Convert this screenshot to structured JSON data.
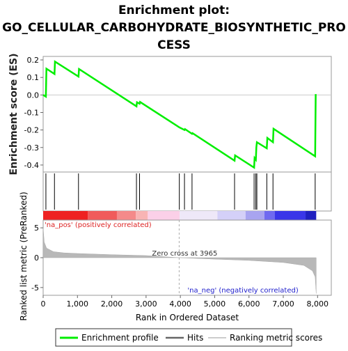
{
  "chart_data": {
    "type": "line",
    "title_lines": [
      "Enrichment plot:",
      "GO_CELLULAR_CARBOHYDRATE_BIOSYNTHETIC_PRO",
      "CESS"
    ],
    "x_label": "Rank in Ordered Dataset",
    "x_range": [
      0,
      8400
    ],
    "x_ticks": [
      0,
      1000,
      2000,
      3000,
      4000,
      5000,
      6000,
      7000,
      8000
    ],
    "x_tick_labels": [
      "0",
      "1,000",
      "2,000",
      "3,000",
      "4,000",
      "5,000",
      "6,000",
      "7,000",
      "8,000"
    ],
    "es_panel": {
      "y_label": "Enrichment score (ES)",
      "y_range": [
        -0.44,
        0.22
      ],
      "y_ticks": [
        0.2,
        0.1,
        0.0,
        -0.1,
        -0.2,
        -0.3,
        -0.4
      ],
      "y_tick_labels": [
        "0.2",
        "0.1",
        "0.0",
        "-0.1",
        "-0.2",
        "-0.3",
        "-0.4"
      ],
      "series_name": "Enrichment profile",
      "color": "#00ee00",
      "points": [
        [
          0,
          0.0
        ],
        [
          80,
          -0.01
        ],
        [
          95,
          0.15
        ],
        [
          330,
          0.12
        ],
        [
          345,
          0.19
        ],
        [
          1030,
          0.105
        ],
        [
          1045,
          0.148
        ],
        [
          2720,
          -0.065
        ],
        [
          2735,
          -0.042
        ],
        [
          2810,
          -0.05
        ],
        [
          2825,
          -0.04
        ],
        [
          3970,
          -0.185
        ],
        [
          4120,
          -0.2
        ],
        [
          4135,
          -0.195
        ],
        [
          4340,
          -0.222
        ],
        [
          4355,
          -0.218
        ],
        [
          5580,
          -0.375
        ],
        [
          5595,
          -0.345
        ],
        [
          6150,
          -0.415
        ],
        [
          6165,
          -0.36
        ],
        [
          6200,
          -0.37
        ],
        [
          6215,
          -0.3
        ],
        [
          6230,
          -0.27
        ],
        [
          6520,
          -0.305
        ],
        [
          6535,
          -0.245
        ],
        [
          6700,
          -0.27
        ],
        [
          6715,
          -0.193
        ],
        [
          7930,
          -0.35
        ],
        [
          7945,
          0.005
        ]
      ]
    },
    "hits": {
      "legend_name": "Hits",
      "positions": [
        80,
        330,
        1030,
        2720,
        2810,
        3970,
        4120,
        4340,
        5580,
        6150,
        6200,
        6230,
        6520,
        6700,
        7930
      ]
    },
    "heat_bar": {
      "colors": [
        "#ee2222",
        "#f05b5b",
        "#f48a8a",
        "#f8b4b4",
        "#fbd0e8",
        "#eee8f8",
        "#d4d0f8",
        "#a8a4f0",
        "#6f6af0",
        "#3a36e8",
        "#2020c0"
      ],
      "boundaries": [
        0,
        1300,
        2150,
        2700,
        3050,
        3980,
        5080,
        5900,
        6450,
        6750,
        7650,
        7960
      ]
    },
    "metric_panel": {
      "y_label": "Ranked list metric (PreRanked)",
      "y_range": [
        -6.3,
        6.3
      ],
      "y_ticks": [
        5,
        0,
        -5
      ],
      "y_tick_labels": [
        "5",
        "0",
        "-5"
      ],
      "legend_name": "Ranking metric scores",
      "curve": [
        [
          0,
          5.0
        ],
        [
          30,
          2.6
        ],
        [
          100,
          1.6
        ],
        [
          300,
          1.0
        ],
        [
          600,
          0.8
        ],
        [
          1000,
          0.7
        ],
        [
          2000,
          0.5
        ],
        [
          3000,
          0.35
        ],
        [
          3965,
          0.0
        ],
        [
          5000,
          -0.25
        ],
        [
          6000,
          -0.45
        ],
        [
          7000,
          -0.8
        ],
        [
          7600,
          -1.3
        ],
        [
          7850,
          -2.2
        ],
        [
          7930,
          -3.2
        ],
        [
          7960,
          -6.0
        ]
      ],
      "zero_cross_label": "Zero cross at 3965",
      "zero_cross_x": 3965,
      "pos_label": "'na_pos' (positively correlated)",
      "neg_label": "'na_neg' (negatively correlated)"
    },
    "legend": [
      "Enrichment profile",
      "Hits",
      "Ranking metric scores"
    ]
  }
}
